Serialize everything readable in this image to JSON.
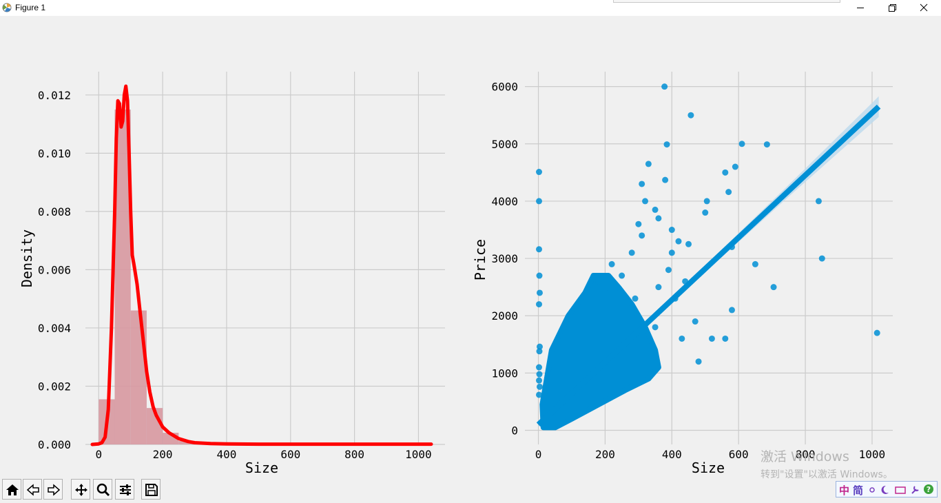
{
  "window": {
    "title": "Figure 1",
    "icon": "matplotlib-figure-icon"
  },
  "toolbar": {
    "buttons": [
      "home-icon",
      "back-icon",
      "forward-icon",
      "pan-icon",
      "zoom-icon",
      "configure-subplots-icon",
      "save-icon"
    ]
  },
  "taskbar": {
    "ime_zh": "中",
    "ime_jian": "简"
  },
  "watermark": {
    "line1": "激活 Windows",
    "line2": "转到\"设置\"以激活 Windows。"
  },
  "colors": {
    "background": "#f0f0f0",
    "grid": "#cbcbcb",
    "hist_fill": "#f08080",
    "hist_overlay": "#a8c8e0",
    "kde_line": "#ff0000",
    "scatter": "#008fd5",
    "ci_band": "#bcd9ee"
  },
  "chart_data": [
    {
      "type": "area",
      "xlabel": "Size",
      "ylabel": "Density",
      "xlim": [
        -20,
        1040
      ],
      "ylim": [
        0,
        0.0128
      ],
      "xticks": [
        0,
        200,
        400,
        600,
        800,
        1000
      ],
      "yticks": [
        0.0,
        0.002,
        0.004,
        0.006,
        0.008,
        0.01,
        0.012
      ],
      "ytick_labels": [
        "0.000",
        "0.002",
        "0.004",
        "0.006",
        "0.008",
        "0.010",
        "0.012"
      ],
      "grid": true,
      "histogram": {
        "bins": [
          {
            "x0": 0,
            "x1": 50,
            "height": 0.00155
          },
          {
            "x0": 50,
            "x1": 100,
            "height": 0.0115
          },
          {
            "x0": 100,
            "x1": 150,
            "height": 0.0046
          },
          {
            "x0": 150,
            "x1": 200,
            "height": 0.00125
          },
          {
            "x0": 200,
            "x1": 250,
            "height": 0.0004
          },
          {
            "x0": 250,
            "x1": 300,
            "height": 0.00012
          },
          {
            "x0": 300,
            "x1": 350,
            "height": 5e-05
          },
          {
            "x0": 350,
            "x1": 400,
            "height": 3e-05
          }
        ]
      },
      "kde": {
        "x": [
          -20,
          0,
          10,
          20,
          30,
          40,
          50,
          55,
          60,
          65,
          70,
          75,
          80,
          85,
          90,
          95,
          100,
          105,
          110,
          120,
          130,
          140,
          150,
          160,
          170,
          180,
          200,
          220,
          250,
          280,
          300,
          350,
          400,
          500,
          600,
          700,
          800,
          900,
          1000,
          1040
        ],
        "y": [
          0,
          2e-05,
          6e-05,
          0.00025,
          0.0012,
          0.004,
          0.008,
          0.0105,
          0.0118,
          0.0117,
          0.0109,
          0.0111,
          0.012,
          0.0123,
          0.0118,
          0.01,
          0.008,
          0.0065,
          0.0062,
          0.0055,
          0.0045,
          0.0035,
          0.0025,
          0.0018,
          0.0013,
          0.001,
          0.0006,
          0.0004,
          0.0002,
          0.0001,
          6e-05,
          3e-05,
          2e-05,
          1e-05,
          1e-05,
          1e-05,
          1e-05,
          1e-05,
          1e-05,
          1e-05
        ]
      }
    },
    {
      "type": "scatter",
      "xlabel": "Size",
      "ylabel": "Price",
      "xlim": [
        -30,
        1060
      ],
      "ylim": [
        -90,
        6140
      ],
      "xticks": [
        0,
        200,
        400,
        600,
        800,
        1000
      ],
      "yticks": [
        0,
        1000,
        2000,
        3000,
        4000,
        5000,
        6000
      ],
      "grid": true,
      "regression": {
        "x0": 0,
        "y0": 100,
        "x1": 1020,
        "y1": 5650
      },
      "points": [
        [
          378,
          6000
        ],
        [
          457,
          5500
        ],
        [
          385,
          4990
        ],
        [
          610,
          5000
        ],
        [
          685,
          4990
        ],
        [
          380,
          4370
        ],
        [
          330,
          4650
        ],
        [
          310,
          4300
        ],
        [
          590,
          4600
        ],
        [
          560,
          4500
        ],
        [
          570,
          4160
        ],
        [
          505,
          4000
        ],
        [
          840,
          4000
        ],
        [
          500,
          3800
        ],
        [
          400,
          3500
        ],
        [
          580,
          3200
        ],
        [
          850,
          3000
        ],
        [
          650,
          2900
        ],
        [
          705,
          2500
        ],
        [
          580,
          2100
        ],
        [
          560,
          1600
        ],
        [
          520,
          1600
        ],
        [
          1015,
          1700
        ],
        [
          2,
          4510
        ],
        [
          2,
          4000
        ],
        [
          2,
          3160
        ],
        [
          3,
          2700
        ],
        [
          4,
          2400
        ],
        [
          2,
          2200
        ],
        [
          4,
          1460
        ],
        [
          3,
          1380
        ],
        [
          2,
          1100
        ],
        [
          3,
          980
        ],
        [
          2,
          870
        ],
        [
          4,
          760
        ],
        [
          2,
          620
        ],
        [
          480,
          1200
        ],
        [
          440,
          2600
        ],
        [
          450,
          3250
        ],
        [
          400,
          3100
        ],
        [
          350,
          3850
        ],
        [
          320,
          4000
        ],
        [
          360,
          3700
        ],
        [
          420,
          3300
        ],
        [
          390,
          2800
        ],
        [
          310,
          3400
        ],
        [
          280,
          3100
        ],
        [
          300,
          3600
        ],
        [
          360,
          2500
        ],
        [
          410,
          2300
        ],
        [
          470,
          1900
        ],
        [
          430,
          1600
        ],
        [
          350,
          1800
        ],
        [
          290,
          2300
        ],
        [
          250,
          2700
        ],
        [
          220,
          2900
        ],
        [
          200,
          2400
        ],
        [
          180,
          2600
        ]
      ]
    }
  ]
}
